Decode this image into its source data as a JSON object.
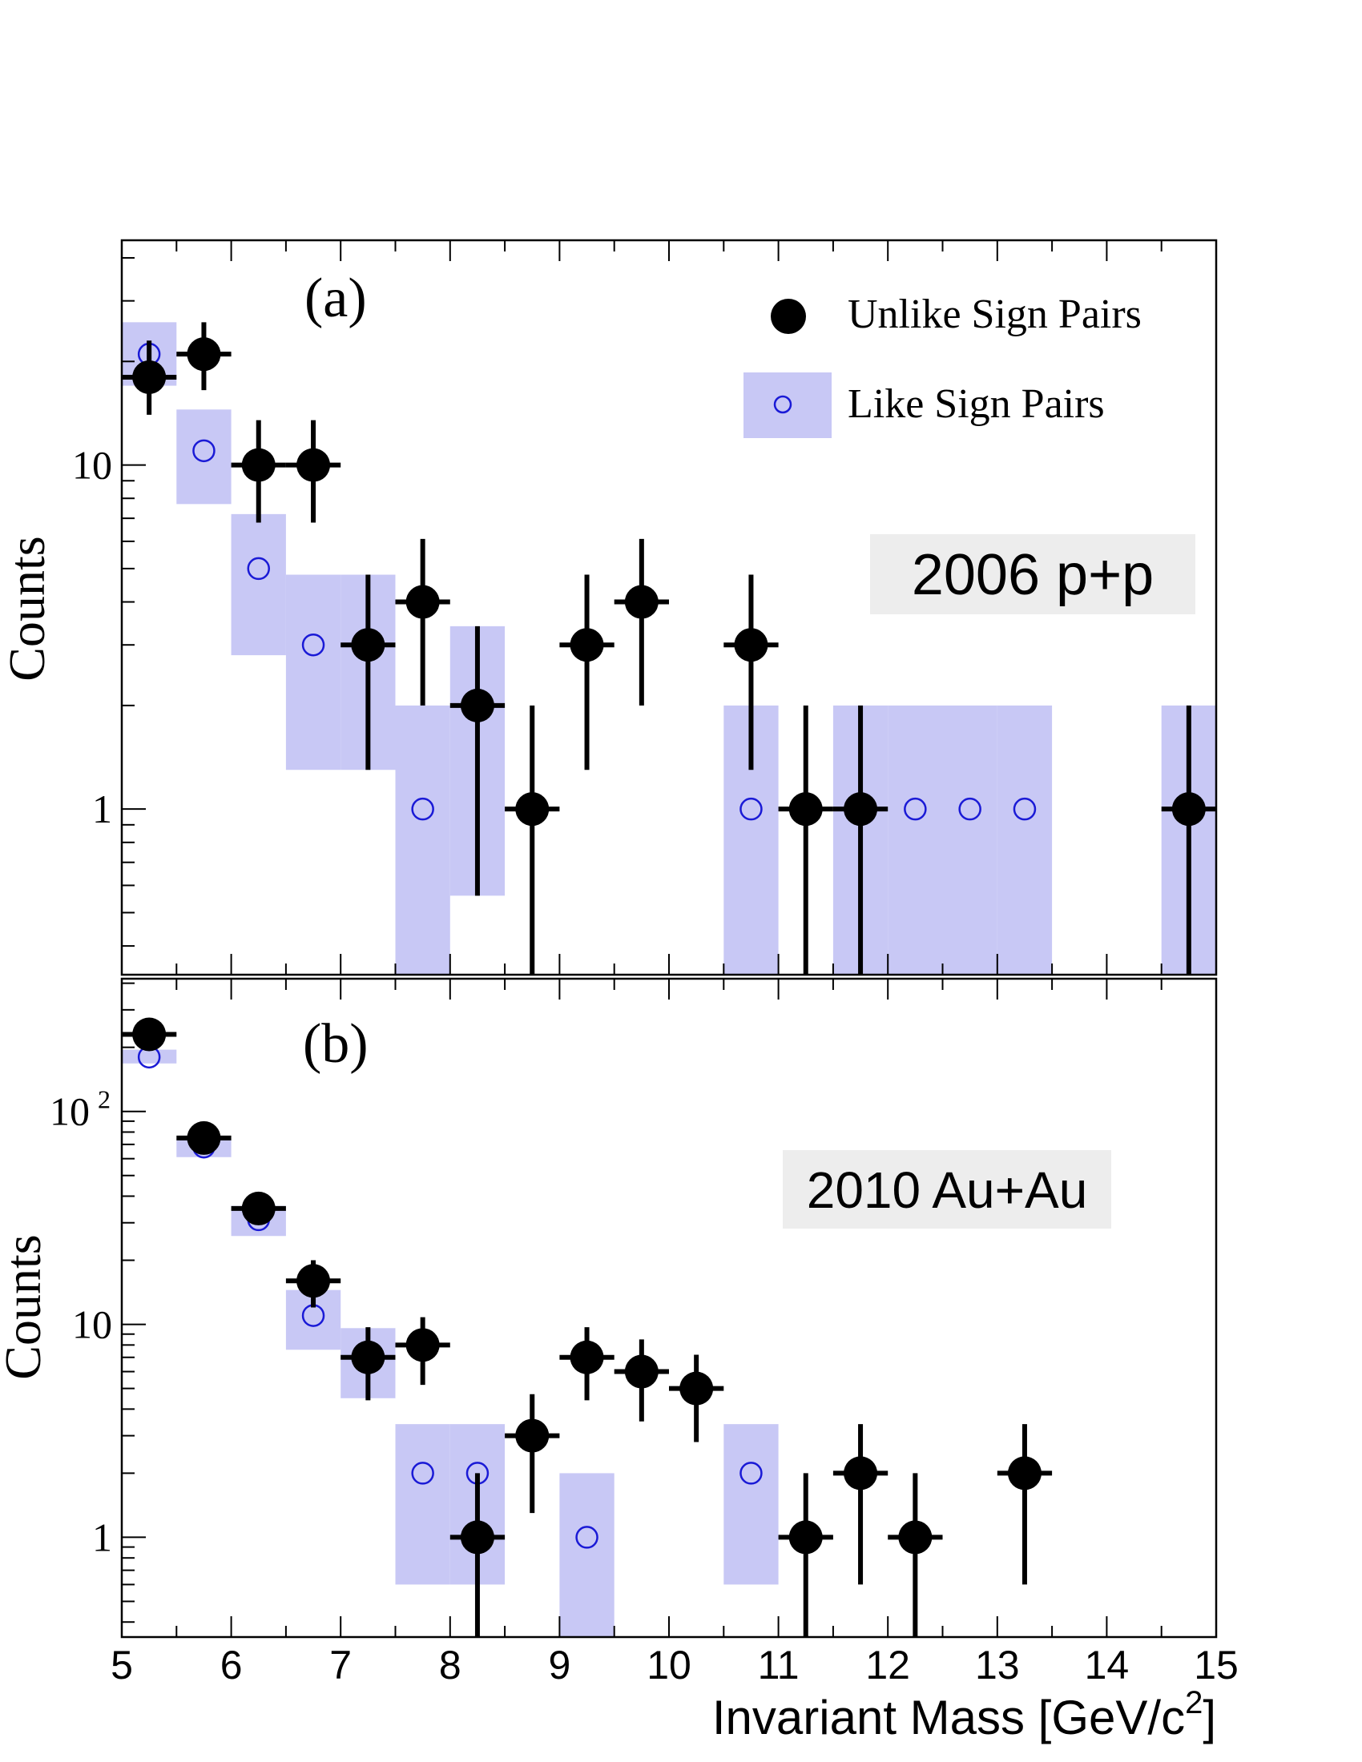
{
  "chart_data": [
    {
      "type": "scatter",
      "panel_label": "(a)",
      "dataset_label": "2006 p+p",
      "xlabel": "Invariant Mass  [GeV/c²]",
      "xlabel_main": "Invariant Mass  [GeV/c",
      "xlabel_sup": "2",
      "xlabel_end": "]",
      "ylabel": "Counts",
      "xlim": [
        5,
        15
      ],
      "ylim": [
        0.33,
        45
      ],
      "y_scale": "log",
      "y_tick_labels": [
        {
          "value": 1,
          "label": "1"
        },
        {
          "value": 10,
          "label": "10"
        }
      ],
      "legend": {
        "placement": "top-right",
        "entries": [
          {
            "name": "Unlike Sign Pairs",
            "marker": "filled-circle",
            "color": "#000000"
          },
          {
            "name": "Like Sign Pairs",
            "marker": "open-circle-with-box",
            "color": "#1a1ad6",
            "box_color": "#c8c8f5"
          }
        ]
      },
      "series": [
        {
          "name": "Unlike Sign Pairs",
          "points": [
            {
              "x": 5.25,
              "y": 18,
              "ylo": 14,
              "yhi": 23
            },
            {
              "x": 5.75,
              "y": 21,
              "ylo": 16.5,
              "yhi": 26
            },
            {
              "x": 6.25,
              "y": 10,
              "ylo": 6.8,
              "yhi": 13.5
            },
            {
              "x": 6.75,
              "y": 10,
              "ylo": 6.8,
              "yhi": 13.5
            },
            {
              "x": 7.25,
              "y": 3,
              "ylo": 1.3,
              "yhi": 4.8
            },
            {
              "x": 7.75,
              "y": 4,
              "ylo": 2,
              "yhi": 6.1
            },
            {
              "x": 8.25,
              "y": 2,
              "ylo": 0.56,
              "yhi": 3.4
            },
            {
              "x": 8.75,
              "y": 1,
              "ylo": 0.33,
              "yhi": 2
            },
            {
              "x": 9.25,
              "y": 3,
              "ylo": 1.3,
              "yhi": 4.8
            },
            {
              "x": 9.75,
              "y": 4,
              "ylo": 2,
              "yhi": 6.1
            },
            {
              "x": 10.75,
              "y": 3,
              "ylo": 1.3,
              "yhi": 4.8
            },
            {
              "x": 11.25,
              "y": 1,
              "ylo": 0.33,
              "yhi": 2
            },
            {
              "x": 11.75,
              "y": 1,
              "ylo": 0.33,
              "yhi": 2
            },
            {
              "x": 14.75,
              "y": 1,
              "ylo": 0.33,
              "yhi": 2
            }
          ]
        },
        {
          "name": "Like Sign Pairs",
          "points": [
            {
              "x": 5.25,
              "y": 21,
              "blo": 17,
              "bhi": 26
            },
            {
              "x": 5.75,
              "y": 11,
              "blo": 7.7,
              "bhi": 14.5
            },
            {
              "x": 6.25,
              "y": 5,
              "blo": 2.8,
              "bhi": 7.2
            },
            {
              "x": 6.75,
              "y": 3,
              "blo": 1.3,
              "bhi": 4.8
            },
            {
              "x": 7.25,
              "y": 3,
              "blo": 1.3,
              "bhi": 4.8
            },
            {
              "x": 7.75,
              "y": 1,
              "blo": 0.33,
              "bhi": 2
            },
            {
              "x": 8.25,
              "y": 2,
              "blo": 0.56,
              "bhi": 3.4
            },
            {
              "x": 10.75,
              "y": 1,
              "blo": 0.33,
              "bhi": 2
            },
            {
              "x": 11.75,
              "y": 1,
              "blo": 0.33,
              "bhi": 2
            },
            {
              "x": 12.25,
              "y": 1,
              "blo": 0.33,
              "bhi": 2
            },
            {
              "x": 12.75,
              "y": 1,
              "blo": 0.33,
              "bhi": 2
            },
            {
              "x": 13.25,
              "y": 1,
              "blo": 0.33,
              "bhi": 2
            },
            {
              "x": 14.75,
              "y": 1,
              "blo": 0.33,
              "bhi": 2
            }
          ]
        }
      ]
    },
    {
      "type": "scatter",
      "panel_label": "(b)",
      "dataset_label": "2010 Au+Au",
      "xlabel": "Invariant Mass  [GeV/c²]",
      "ylabel": "Counts",
      "xlim": [
        5,
        15
      ],
      "ylim": [
        0.34,
        420
      ],
      "y_scale": "log",
      "x_tick_labels": [
        "5",
        "6",
        "7",
        "8",
        "9",
        "10",
        "11",
        "12",
        "13",
        "14",
        "15"
      ],
      "y_tick_labels": [
        {
          "value": 1,
          "label": "1"
        },
        {
          "value": 10,
          "label": "10"
        },
        {
          "value": 100,
          "label": "10",
          "sup": "2"
        }
      ],
      "series": [
        {
          "name": "Unlike Sign Pairs",
          "points": [
            {
              "x": 5.25,
              "y": 230,
              "ylo": 215,
              "yhi": 245
            },
            {
              "x": 5.75,
              "y": 75,
              "ylo": 67,
              "yhi": 83
            },
            {
              "x": 6.25,
              "y": 35,
              "ylo": 30,
              "yhi": 41
            },
            {
              "x": 6.75,
              "y": 16,
              "ylo": 12,
              "yhi": 20
            },
            {
              "x": 7.25,
              "y": 7,
              "ylo": 4.4,
              "yhi": 9.7
            },
            {
              "x": 7.75,
              "y": 8,
              "ylo": 5.2,
              "yhi": 10.8
            },
            {
              "x": 8.25,
              "y": 1,
              "ylo": 0.34,
              "yhi": 2
            },
            {
              "x": 8.75,
              "y": 3,
              "ylo": 1.3,
              "yhi": 4.7
            },
            {
              "x": 9.25,
              "y": 7,
              "ylo": 4.4,
              "yhi": 9.7
            },
            {
              "x": 9.75,
              "y": 6,
              "ylo": 3.5,
              "yhi": 8.5
            },
            {
              "x": 10.25,
              "y": 5,
              "ylo": 2.8,
              "yhi": 7.2
            },
            {
              "x": 11.25,
              "y": 1,
              "ylo": 0.34,
              "yhi": 2
            },
            {
              "x": 11.75,
              "y": 2,
              "ylo": 0.6,
              "yhi": 3.4
            },
            {
              "x": 12.25,
              "y": 1,
              "ylo": 0.34,
              "yhi": 2
            },
            {
              "x": 13.25,
              "y": 2,
              "ylo": 0.6,
              "yhi": 3.4
            }
          ]
        },
        {
          "name": "Like Sign Pairs",
          "points": [
            {
              "x": 5.25,
              "y": 180,
              "blo": 168,
              "bhi": 195
            },
            {
              "x": 5.75,
              "y": 68,
              "blo": 61,
              "bhi": 75
            },
            {
              "x": 6.25,
              "y": 31,
              "blo": 26,
              "bhi": 36
            },
            {
              "x": 6.75,
              "y": 11,
              "blo": 7.6,
              "bhi": 14.5
            },
            {
              "x": 7.25,
              "y": 7,
              "blo": 4.5,
              "bhi": 9.6
            },
            {
              "x": 7.75,
              "y": 2,
              "blo": 0.6,
              "bhi": 3.4
            },
            {
              "x": 8.25,
              "y": 2,
              "blo": 0.6,
              "bhi": 3.4
            },
            {
              "x": 9.25,
              "y": 1,
              "blo": 0.34,
              "bhi": 2
            },
            {
              "x": 10.75,
              "y": 2,
              "blo": 0.6,
              "bhi": 3.4
            }
          ]
        }
      ]
    }
  ]
}
